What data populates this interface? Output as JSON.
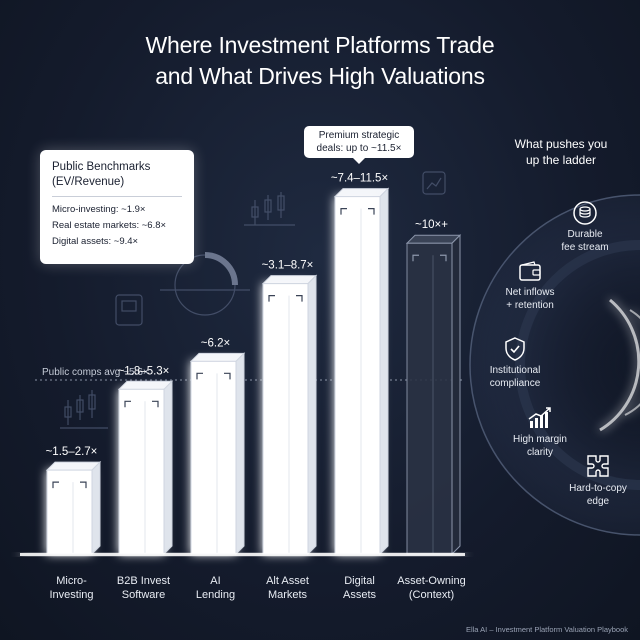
{
  "title_lines": [
    "Where Investment Platforms Trade",
    "and What Drives High Valuations"
  ],
  "benchmarks": {
    "title_lines": [
      "Public Benchmarks",
      "(EV/Revenue)"
    ],
    "rows": [
      "Micro-investing: ~1.9×",
      "Real estate markets: ~6.8×",
      "Digital assets: ~9.4×"
    ]
  },
  "callout_lines": [
    "Premium strategic",
    "deals: up to ~11.5×"
  ],
  "drivers": {
    "title_lines": [
      "What pushes you",
      "up the ladder"
    ],
    "items": [
      {
        "icon": "coin-stack-icon",
        "lines": [
          "Durable",
          "fee stream"
        ]
      },
      {
        "icon": "wallet-icon",
        "lines": [
          "Net inflows",
          "+ retention"
        ]
      },
      {
        "icon": "shield-check-icon",
        "lines": [
          "Institutional",
          "compliance"
        ]
      },
      {
        "icon": "growth-chart-icon",
        "lines": [
          "High margin",
          "clarity"
        ]
      },
      {
        "icon": "puzzle-icon",
        "lines": [
          "Hard-to-copy",
          "edge"
        ]
      }
    ]
  },
  "footer": "Ella AI – Investment Platform Valuation Playbook",
  "chart_data": {
    "type": "bar",
    "categories": [
      [
        "Micro-",
        "Investing"
      ],
      [
        "B2B Invest",
        "Software"
      ],
      [
        "AI",
        "Lending"
      ],
      [
        "Alt Asset",
        "Markets"
      ],
      [
        "Digital",
        "Assets"
      ],
      [
        "Asset-Owning",
        "(Context)"
      ]
    ],
    "values": [
      2.7,
      5.3,
      6.2,
      8.7,
      11.5,
      10
    ],
    "ranges": [
      [
        1.5,
        2.7
      ],
      [
        1.8,
        5.3
      ],
      [
        6.2,
        6.2
      ],
      [
        3.1,
        8.7
      ],
      [
        7.4,
        11.5
      ],
      [
        10,
        10
      ]
    ],
    "data_labels": [
      "~1.5–2.7×",
      "~1.8–5.3×",
      "~6.2×",
      "~3.1–8.7×",
      "~7.4–11.5×",
      "~10×+"
    ],
    "context_bar_index": 5,
    "reference_line": {
      "value": 5.6,
      "label": "Public comps avg ~5.6×"
    },
    "ylim": [
      0,
      13
    ],
    "grid": false,
    "colors": {
      "bar": "#ffffff",
      "bar_side": "#dfe4ec",
      "bar_top": "#f4f6fa",
      "context_bar": "#2a3244",
      "reference_line": "#8a93a6"
    }
  }
}
